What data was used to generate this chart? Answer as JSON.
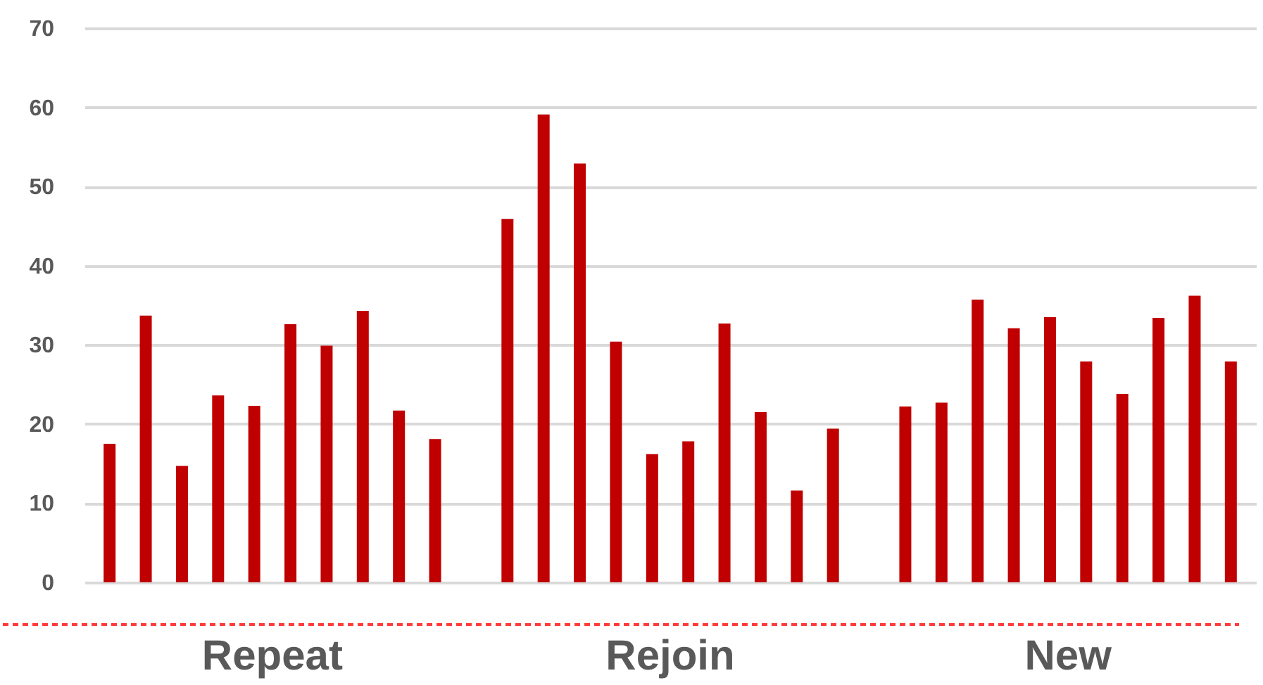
{
  "chart_data": {
    "type": "bar",
    "categories": [
      null,
      null,
      null,
      null,
      null,
      null,
      null,
      null,
      null,
      null,
      null,
      null,
      null,
      null,
      null,
      null,
      null,
      null,
      null,
      null,
      null,
      null,
      null,
      null,
      null,
      null,
      null,
      null,
      null,
      null,
      null,
      null
    ],
    "series": [
      {
        "name": "Repeat",
        "color": "#c00000",
        "values": [
          17.5,
          33.7,
          14.7,
          23.6,
          22.3,
          32.6,
          29.9,
          34.3,
          21.7,
          18.1,
          null,
          null,
          null,
          null,
          null,
          null,
          null,
          null,
          null,
          null,
          null,
          null,
          null,
          null,
          null,
          null,
          null,
          null,
          null,
          null,
          null,
          null
        ]
      },
      {
        "name": "Rejoin",
        "color": "#c00000",
        "values": [
          null,
          null,
          null,
          null,
          null,
          null,
          null,
          null,
          null,
          null,
          null,
          45.9,
          59.1,
          52.9,
          30.4,
          16.2,
          17.8,
          32.7,
          21.5,
          11.6,
          19.4,
          null,
          null,
          null,
          null,
          null,
          null,
          null,
          null,
          null,
          null,
          null
        ]
      },
      {
        "name": "New",
        "color": "#c00000",
        "values": [
          null,
          null,
          null,
          null,
          null,
          null,
          null,
          null,
          null,
          null,
          null,
          null,
          null,
          null,
          null,
          null,
          null,
          null,
          null,
          null,
          null,
          null,
          22.2,
          22.7,
          35.7,
          32.1,
          33.5,
          27.9,
          23.8,
          33.4,
          36.2,
          27.9
        ]
      }
    ],
    "ylim": [
      0,
      70
    ],
    "yticks": [
      0,
      10,
      20,
      30,
      40,
      50,
      60,
      70
    ],
    "grid": "y"
  }
}
